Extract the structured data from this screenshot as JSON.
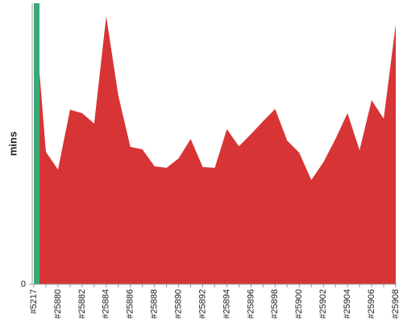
{
  "chart_data": {
    "type": "area",
    "y_label": "mins",
    "categories": [
      "#5217",
      null,
      "#25880",
      null,
      "#25882",
      null,
      "#25884",
      null,
      "#25886",
      null,
      "#25888",
      null,
      "#25890",
      null,
      "#25892",
      null,
      "#25894",
      null,
      "#25896",
      null,
      "#25898",
      null,
      "#25900",
      null,
      "#25902",
      null,
      "#25904",
      null,
      "#25906",
      null,
      "#25908"
    ],
    "series": [
      {
        "color": "#3aa876",
        "values": [
          100,
          null,
          null,
          null,
          null,
          null,
          null,
          null,
          null,
          null,
          null,
          null,
          null,
          null,
          null,
          null,
          null,
          null,
          null,
          null,
          null,
          null,
          null,
          null,
          null,
          null,
          null,
          null,
          null,
          null,
          null
        ]
      },
      {
        "color": "#d73535",
        "values": [
          100,
          47.1,
          40.8,
          62.1,
          60.9,
          57.2,
          95.4,
          67.2,
          48.9,
          48.0,
          42.0,
          41.4,
          44.8,
          51.7,
          41.7,
          41.4,
          55.2,
          49.1,
          53.4,
          58.0,
          62.4,
          51.1,
          46.8,
          37.1,
          43.4,
          51.7,
          60.9,
          47.7,
          65.5,
          58.9,
          92.5
        ]
      }
    ],
    "ylim": [
      0,
      100
    ],
    "yticks": [
      0
    ]
  }
}
